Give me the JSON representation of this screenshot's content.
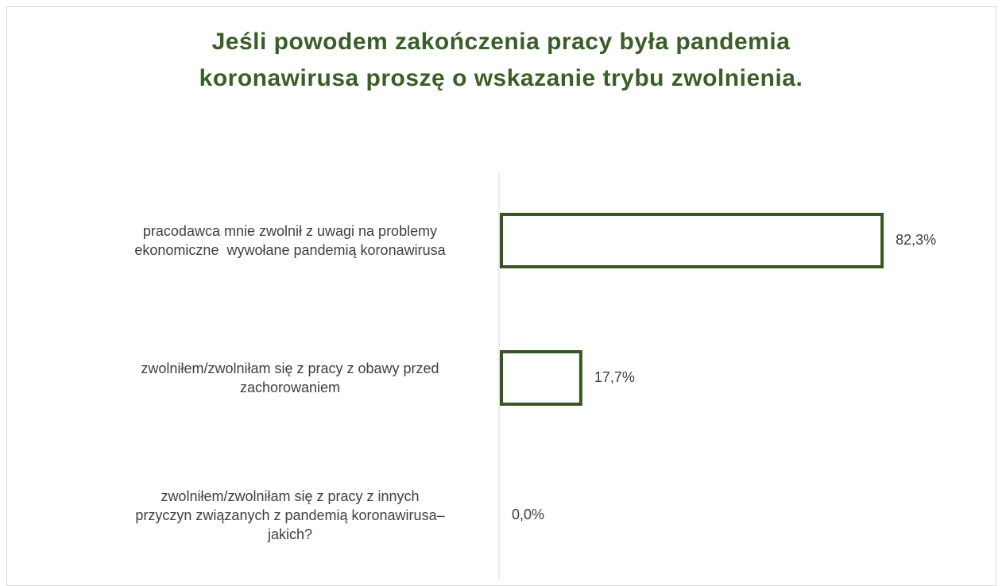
{
  "chart_data": {
    "type": "bar",
    "orientation": "horizontal",
    "title": "Jeśli powodem zakończenia pracy była pandemia\nkoronawirusa proszę o wskazanie trybu zwolnienia.",
    "categories": [
      "pracodawca mnie zwolnił z uwagi na problemy\nekonomiczne  wywołane pandemią koronawirusa",
      "zwolniłem/zwolniłam się z pracy z obawy przed\nzachorowaniem",
      "zwolniłem/zwolniłam się z pracy z innych\nprzyczyn związanych z pandemią koronawirusa–\njakich?"
    ],
    "values": [
      82.3,
      17.7,
      0.0
    ],
    "value_labels": [
      "82,3%",
      "17,7%",
      "0,0%"
    ],
    "color": "#375623",
    "xlim": [
      0,
      100
    ]
  }
}
